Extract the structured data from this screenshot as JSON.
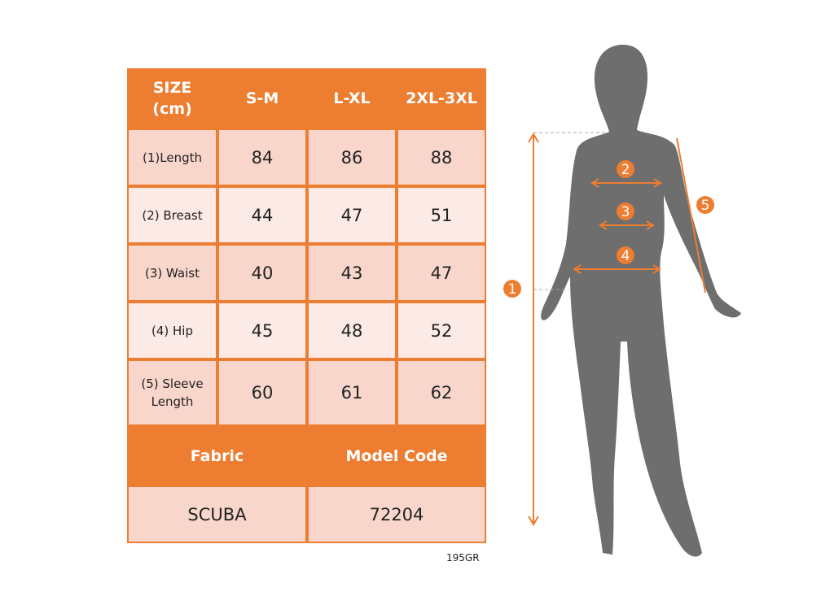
{
  "colors": {
    "accent": "#ED7D31",
    "row_dark": "#F8D6CB",
    "row_light": "#FBEAE5",
    "silhouette": "#6E6E6E"
  },
  "table": {
    "headers": [
      "SIZE\n(cm)",
      "S-M",
      "L-XL",
      "2XL-3XL"
    ],
    "rows": [
      {
        "label": "(1)Length",
        "values": [
          "84",
          "86",
          "88"
        ]
      },
      {
        "label": "(2) Breast",
        "values": [
          "44",
          "47",
          "51"
        ]
      },
      {
        "label": "(3) Waist",
        "values": [
          "40",
          "43",
          "47"
        ]
      },
      {
        "label": "(4) Hip",
        "values": [
          "45",
          "48",
          "52"
        ]
      },
      {
        "label": "(5) Sleeve\nLength",
        "values": [
          "60",
          "61",
          "62"
        ]
      }
    ],
    "footer_headers": [
      "Fabric",
      "Model Code"
    ],
    "footer_values": [
      "SCUBA",
      "72204"
    ]
  },
  "weight_code": "195GR",
  "markers": [
    "1",
    "2",
    "3",
    "4",
    "5"
  ]
}
